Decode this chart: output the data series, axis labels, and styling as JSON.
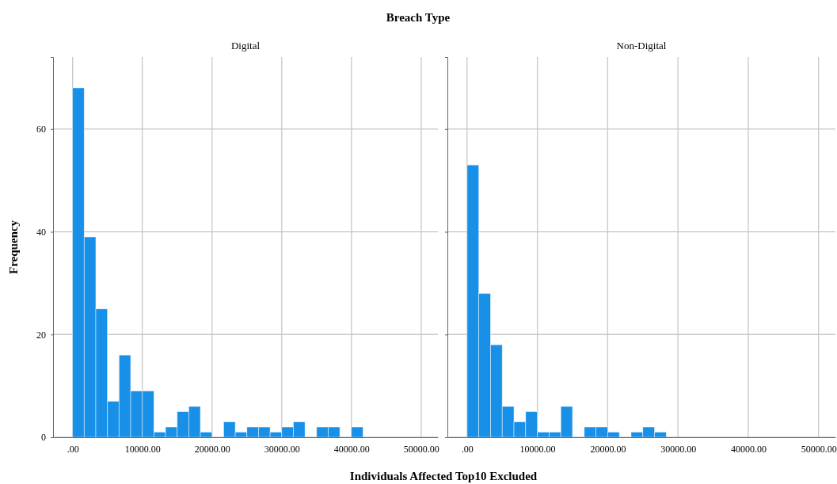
{
  "chart_data": [
    {
      "type": "histogram",
      "title": "Breach Type",
      "subtitle": "Digital",
      "xlabel": "Individuals Affected Top10 Excluded",
      "ylabel": "Frequency",
      "color": "#1990e8",
      "bins": [
        0,
        1667,
        3333,
        5000,
        6667,
        8333,
        10000,
        11667,
        13333,
        15000,
        16667,
        18333,
        20000,
        21667,
        23333,
        25000,
        26667,
        28333,
        30000,
        31667,
        33333,
        35000,
        36667,
        38333,
        40000,
        41667
      ],
      "values": [
        68,
        39,
        25,
        7,
        16,
        9,
        9,
        1,
        2,
        5,
        6,
        1,
        0,
        3,
        1,
        2,
        2,
        1,
        2,
        3,
        0,
        2,
        2,
        0,
        2
      ],
      "xlim": [
        -2800,
        52400
      ],
      "xticks": [
        {
          "value": 0,
          "label": ".00"
        },
        {
          "value": 10000,
          "label": "10000.00"
        },
        {
          "value": 20000,
          "label": "20000.00"
        },
        {
          "value": 30000,
          "label": "30000.00"
        },
        {
          "value": 40000,
          "label": "40000.00"
        },
        {
          "value": 50000,
          "label": "50000.00"
        }
      ],
      "ylim": [
        0,
        74
      ],
      "yticks": [
        0,
        20,
        40,
        60
      ],
      "grid": true
    },
    {
      "type": "histogram",
      "subtitle": "Non-Digital",
      "color": "#1990e8",
      "bins": [
        0,
        1667,
        3333,
        5000,
        6667,
        8333,
        10000,
        11667,
        13333,
        15000,
        16667,
        18333,
        20000,
        21667,
        23333,
        25000,
        26667,
        28333
      ],
      "values": [
        53,
        28,
        18,
        6,
        3,
        5,
        1,
        1,
        6,
        0,
        2,
        2,
        1,
        0,
        1,
        2,
        1
      ],
      "xlim": [
        -2800,
        52400
      ],
      "xticks": [
        {
          "value": 0,
          "label": ".00"
        },
        {
          "value": 10000,
          "label": "10000.00"
        },
        {
          "value": 20000,
          "label": "20000.00"
        },
        {
          "value": 30000,
          "label": "30000.00"
        },
        {
          "value": 40000,
          "label": "40000.00"
        },
        {
          "value": 50000,
          "label": "50000.00"
        }
      ],
      "ylim": [
        0,
        74
      ],
      "yticks": [
        0,
        20,
        40,
        60
      ],
      "grid": true,
      "tick_labels": "x"
    }
  ]
}
